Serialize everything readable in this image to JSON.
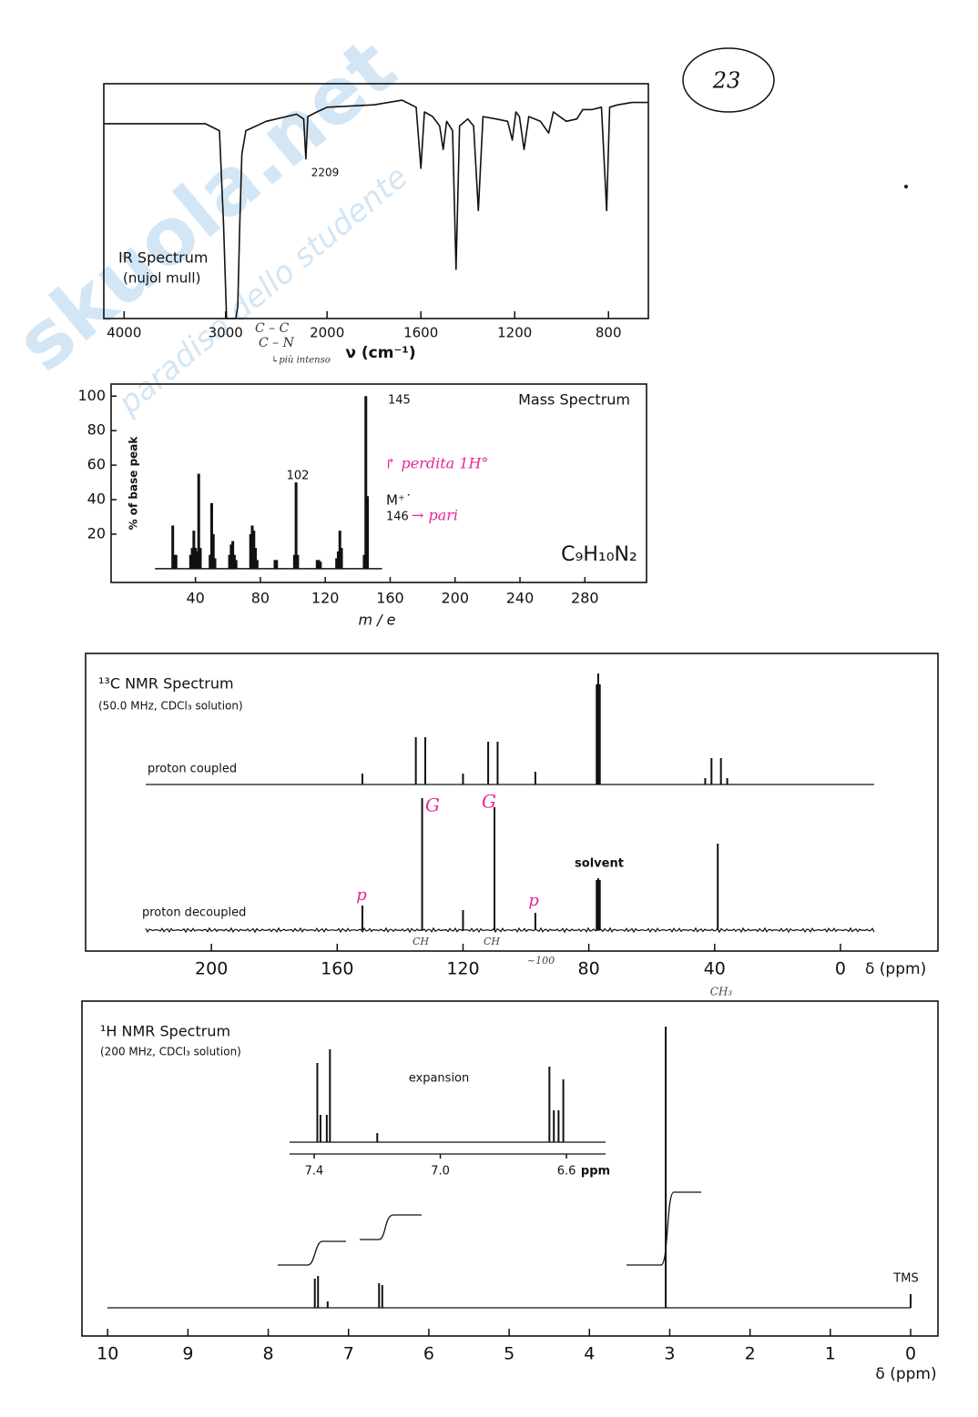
{
  "page_number": "23",
  "watermark": [
    "skuola.net",
    "paradiso dello studente"
  ],
  "chart_data": [
    {
      "type": "line",
      "title": "IR Spectrum",
      "subtitle": "(nujol mull)",
      "x_label": "ν (cm⁻¹)",
      "color": "#111111",
      "xlim": [
        4200,
        630
      ],
      "scale_break": 2000,
      "xticks": [
        4000,
        3000,
        2000,
        1600,
        1200,
        800
      ],
      "ylim": [
        0,
        100
      ],
      "x": [
        4200,
        3200,
        3060,
        3020,
        2990,
        2900,
        2880,
        2860,
        2840,
        2800,
        2600,
        2300,
        2230,
        2209,
        2190,
        2100,
        2000,
        1800,
        1680,
        1620,
        1600,
        1585,
        1550,
        1520,
        1505,
        1490,
        1465,
        1450,
        1435,
        1400,
        1375,
        1355,
        1335,
        1280,
        1230,
        1210,
        1195,
        1180,
        1160,
        1140,
        1090,
        1055,
        1035,
        980,
        935,
        910,
        870,
        830,
        808,
        795,
        760,
        700,
        630
      ],
      "values": [
        83,
        83,
        80,
        40,
        0,
        0,
        5,
        40,
        70,
        80,
        84,
        87,
        85,
        68,
        86,
        88,
        90,
        91,
        93,
        90,
        64,
        88,
        86,
        82,
        72,
        84,
        80,
        21,
        82,
        85,
        82,
        46,
        86,
        85,
        84,
        76,
        88,
        86,
        72,
        86,
        84,
        79,
        88,
        84,
        85,
        89,
        89,
        90,
        46,
        90,
        91,
        92,
        92
      ],
      "annotations": [
        "2209"
      ],
      "handwritten": [
        {
          "text": "C – C",
          "color": "#333333"
        },
        {
          "text": "C – N",
          "color": "#333333"
        },
        {
          "text": "↳più intenso",
          "color": "#333333"
        }
      ]
    },
    {
      "type": "bar",
      "title": "Mass Spectrum",
      "y_label": "% of base peak",
      "x_label": "m / e",
      "formula": "C₉H₁₀N₂",
      "color": "#111111",
      "xlim": [
        -12,
        318
      ],
      "xticks": [
        40,
        80,
        120,
        160,
        200,
        240,
        280
      ],
      "ylim": [
        -8,
        107
      ],
      "yticks": [
        20,
        40,
        60,
        80,
        100
      ],
      "x": [
        26,
        27,
        28,
        37,
        38,
        39,
        40,
        41,
        42,
        43,
        49,
        50,
        51,
        52,
        61,
        62,
        63,
        64,
        65,
        74,
        75,
        76,
        77,
        78,
        89,
        90,
        101,
        102,
        103,
        115,
        116,
        117,
        127,
        128,
        129,
        130,
        144,
        145,
        146
      ],
      "values": [
        25,
        8,
        8,
        8,
        12,
        22,
        12,
        10,
        55,
        12,
        8,
        38,
        20,
        6,
        8,
        14,
        16,
        8,
        5,
        20,
        25,
        22,
        12,
        5,
        5,
        5,
        8,
        50,
        8,
        5,
        5,
        4,
        6,
        10,
        22,
        12,
        8,
        100,
        42
      ],
      "annotations": [
        "102",
        "145",
        "M⁺˙",
        "146"
      ],
      "handwritten": [
        {
          "text": "↱ perdita 1H°",
          "color": "#e8259b"
        },
        {
          "text": "→ pari",
          "color": "#e8259b"
        }
      ]
    },
    {
      "type": "stem",
      "title": "¹³C NMR Spectrum",
      "subtitle": "(50.0 MHz, CDCl₃ solution)",
      "x_label": "δ (ppm)",
      "color": "#111111",
      "xlim": [
        240,
        -31
      ],
      "xticks": [
        200,
        160,
        120,
        80,
        40,
        0
      ],
      "ylim": [
        0,
        150
      ],
      "series": [
        {
          "name": "proton coupled",
          "color": "#111111",
          "x": [
            152,
            135,
            132,
            120,
            112,
            109,
            97,
            77.5,
            77,
            76.5,
            43,
            41,
            38,
            36
          ],
          "values": [
            12,
            52,
            52,
            12,
            47,
            47,
            14,
            110,
            122,
            110,
            7,
            29,
            29,
            7
          ]
        },
        {
          "name": "proton decoupled",
          "color": "#111111",
          "x": [
            152,
            133,
            120,
            110,
            97,
            77.5,
            77,
            76.5,
            39
          ],
          "values": [
            27,
            145,
            22,
            135,
            19,
            55,
            57,
            55,
            95
          ]
        }
      ],
      "annotations": [
        "solvent"
      ],
      "handwritten": [
        {
          "text": "G",
          "color": "#e8259b"
        },
        {
          "text": "G",
          "color": "#e8259b"
        },
        {
          "text": "p",
          "color": "#e8259b"
        },
        {
          "text": "p",
          "color": "#e8259b"
        },
        {
          "text": "CH",
          "color": "#444444"
        },
        {
          "text": "CH",
          "color": "#444444"
        },
        {
          "text": "~100",
          "color": "#444444"
        },
        {
          "text": "CH₃",
          "color": "#444444"
        }
      ]
    },
    {
      "type": "stem",
      "title": "¹H NMR Spectrum",
      "subtitle": "(200 MHz, CDCl₃ solution)",
      "x_label": "δ (ppm)",
      "color": "#111111",
      "xlim": [
        10.32,
        -0.34
      ],
      "xticks": [
        10,
        9,
        8,
        7,
        6,
        5,
        4,
        3,
        2,
        1,
        0
      ],
      "ylim": [
        0,
        320
      ],
      "x": [
        7.42,
        7.38,
        7.26,
        6.62,
        6.58,
        3.05,
        0
      ],
      "values": [
        32,
        35,
        7,
        27,
        25,
        309,
        15
      ],
      "annotations": [
        "TMS"
      ]
    },
    {
      "type": "stem",
      "title": "expansion",
      "x_label": "ppm",
      "color": "#111111",
      "xlim": [
        7.478,
        6.476
      ],
      "xticks": [
        7.4,
        {
          "value": 7,
          "label": "7.0"
        },
        6.6
      ],
      "ylim": [
        0,
        110
      ],
      "x": [
        7.39,
        7.38,
        7.36,
        7.35,
        7.2,
        6.654,
        6.64,
        6.625,
        6.61
      ],
      "values": [
        87,
        30,
        30,
        102,
        10,
        83,
        35,
        35,
        69
      ]
    }
  ]
}
